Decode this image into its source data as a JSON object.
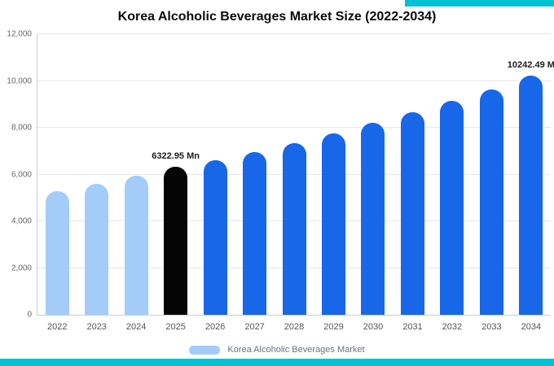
{
  "accent": {
    "color": "#00C2D4"
  },
  "legend": {
    "label": "Korea Alcoholic Beverages Market",
    "swatch_color": "#A4CCF8"
  },
  "chart_data": {
    "type": "bar",
    "title": "Korea Alcoholic Beverages Market Size (2022-2034)",
    "categories": [
      "2022",
      "2023",
      "2024",
      "2025",
      "2026",
      "2027",
      "2028",
      "2029",
      "2030",
      "2031",
      "2032",
      "2033",
      "2034"
    ],
    "values": [
      5300,
      5600,
      5950,
      6322.95,
      6600,
      6950,
      7350,
      7750,
      8200,
      8650,
      9150,
      9650,
      10242.49
    ],
    "bar_colors": [
      "#A4CCF8",
      "#A4CCF8",
      "#A4CCF8",
      "#050505",
      "#1767E8",
      "#1767E8",
      "#1767E8",
      "#1767E8",
      "#1767E8",
      "#1767E8",
      "#1767E8",
      "#1767E8",
      "#1767E8"
    ],
    "ylim": [
      0,
      12000
    ],
    "yticks": [
      {
        "value": 0,
        "label": "0"
      },
      {
        "value": 2000,
        "label": "2,000"
      },
      {
        "value": 4000,
        "label": "4,000"
      },
      {
        "value": 6000,
        "label": "6,000"
      },
      {
        "value": 8000,
        "label": "8,000"
      },
      {
        "value": 10000,
        "label": "10,000"
      },
      {
        "value": 12000,
        "label": "12,000"
      }
    ],
    "annotations": [
      {
        "index": 3,
        "text": "6322.95 Mn"
      },
      {
        "index": 12,
        "text": "10242.49 M"
      }
    ],
    "grid": "horizontal",
    "legend_position": "bottom"
  }
}
